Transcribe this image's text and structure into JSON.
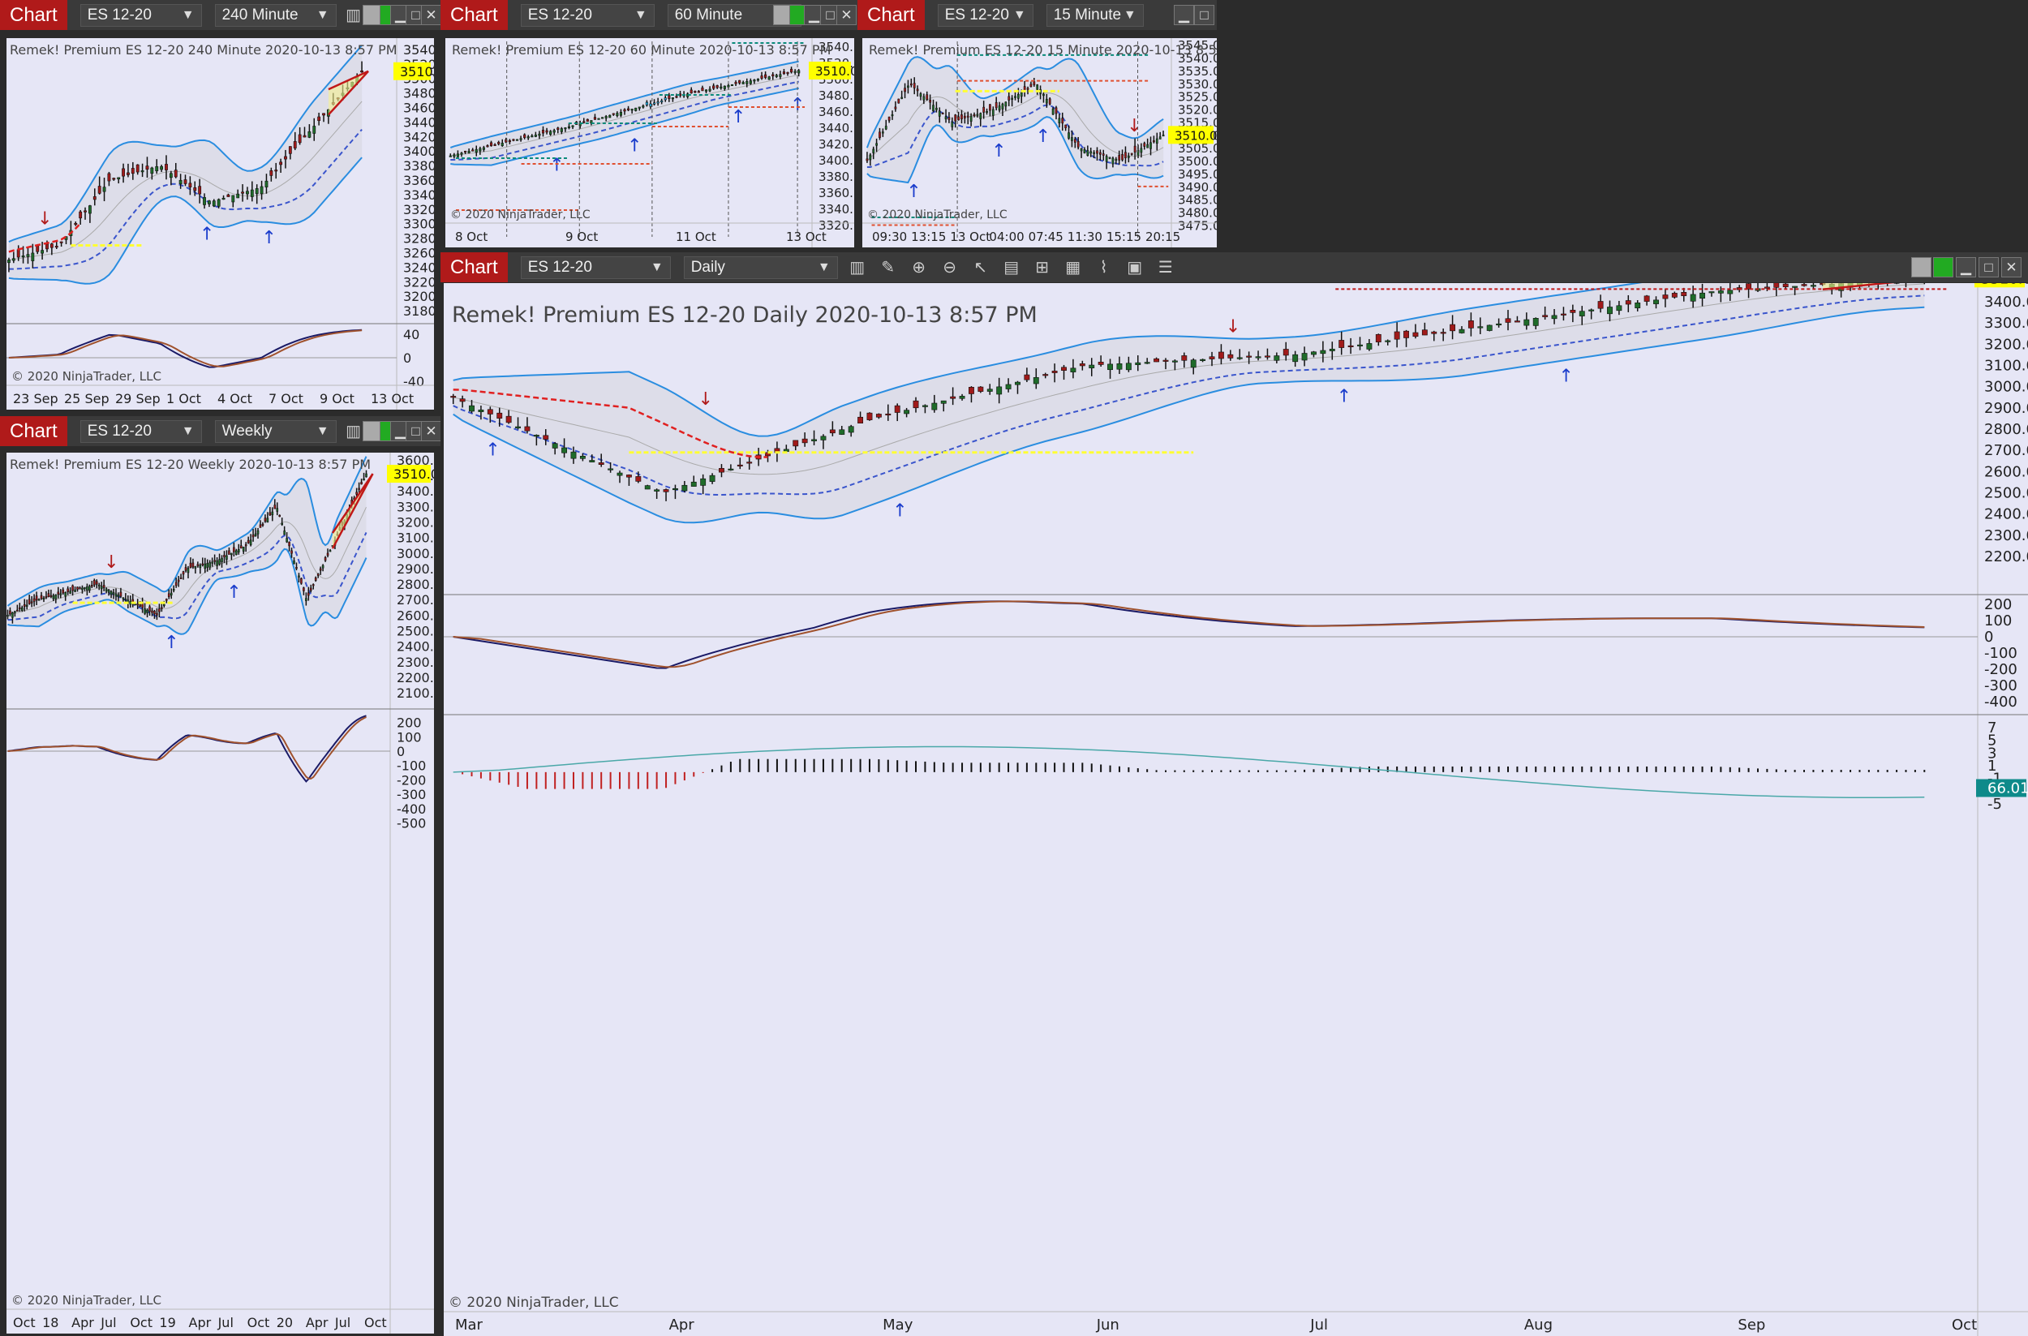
{
  "common": {
    "app_tag": "Chart",
    "instrument": "ES 12-20",
    "dropdown_chevron": "chevron-down-icon",
    "copyright": "© 2020 NinjaTrader, LLC",
    "price_badge": "3510.00"
  },
  "colors": {
    "background": "#2b2b2b",
    "toolbar": "#3a3a3a",
    "chart_tag": "#b01a1a",
    "panel": "#e6e6f6",
    "band_fill": "#d8d8e4",
    "bollinger": "#2a8de0",
    "lower_mid": "#3a55cc",
    "bearish": "#e02020",
    "support": "#ffff33",
    "macd": "#1a1a66",
    "signal": "#a0522d",
    "histogram_pos": "#111111",
    "histogram_neg": "#c02020",
    "cumulative": "#4aa8a8",
    "badge": "#ffff00",
    "oscillator_value_badge": "#0e8a8a"
  },
  "toolbar_icons": [
    "bar-style-icon",
    "pencil-icon",
    "zoom-icon",
    "chevron-down-icon"
  ],
  "windows": [
    {
      "interval": "240 Minute",
      "label": "Remek!  Premium  ES 12-20  240 Minute  2020-10-13 8:57 PM",
      "y_ticks": [
        "3540.00",
        "3520.00",
        "3500.00",
        "3480.00",
        "3460.00",
        "3440.00",
        "3420.00",
        "3400.00",
        "3380.00",
        "3360.00",
        "3340.00",
        "3320.00",
        "3300.00",
        "3280.00",
        "3260.00",
        "3240.00",
        "3220.00",
        "3200.00",
        "3180.00"
      ],
      "osc_ticks": [
        "40",
        "0",
        "-40"
      ],
      "x_ticks": [
        "23 Sep",
        "25 Sep",
        "29 Sep",
        "1 Oct",
        "4 Oct",
        "7 Oct",
        "9 Oct",
        "13 Oct"
      ]
    },
    {
      "interval": "60 Minute",
      "label": "Remek!  Premium  ES 12-20  60 Minute  2020-10-13 8:57 PM",
      "y_ticks": [
        "3540.00",
        "3520.00",
        "3500.00",
        "3480.00",
        "3460.00",
        "3440.00",
        "3420.00",
        "3400.00",
        "3380.00",
        "3360.00",
        "3340.00",
        "3320.00"
      ],
      "x_ticks": [
        "8 Oct",
        "9 Oct",
        "11 Oct",
        "13 Oct"
      ]
    },
    {
      "interval": "15 Minute",
      "label": "Remek!  Premium  ES 12-20  15 Minute  2020-10-13 8:57 PM",
      "y_ticks": [
        "3545.00",
        "3540.00",
        "3535.00",
        "3530.00",
        "3525.00",
        "3520.00",
        "3515.00",
        "3510.00",
        "3505.00",
        "3500.00",
        "3495.00",
        "3490.00",
        "3485.00",
        "3480.00",
        "3475.00"
      ],
      "x_ticks": [
        "09:30",
        "13:15",
        "13 Oct",
        "04:00",
        "07:45",
        "11:30",
        "15:15",
        "20:15"
      ]
    },
    {
      "interval": "Weekly",
      "label": "Remek!  Premium  ES 12-20  Weekly  2020-10-13 8:57 PM",
      "y_ticks": [
        "3600.00",
        "3500.00",
        "3400.00",
        "3300.00",
        "3200.00",
        "3100.00",
        "3000.00",
        "2900.00",
        "2800.00",
        "2700.00",
        "2600.00",
        "2500.00",
        "2400.00",
        "2300.00",
        "2200.00",
        "2100.00"
      ],
      "osc_ticks": [
        "200",
        "100",
        "0",
        "-100",
        "-200",
        "-300",
        "-400",
        "-500"
      ],
      "x_ticks": [
        "Oct",
        "18",
        "Apr",
        "Jul",
        "Oct",
        "19",
        "Apr",
        "Jul",
        "Oct",
        "20",
        "Apr",
        "Jul",
        "Oct"
      ]
    },
    {
      "interval": "Daily",
      "label": "Remek!  Premium  ES 12-20  Daily  2020-10-13 8:57 PM",
      "y_ticks": [
        "3400.00",
        "3300.00",
        "3200.00",
        "3100.00",
        "3000.00",
        "2900.00",
        "2800.00",
        "2700.00",
        "2600.00",
        "2500.00",
        "2400.00",
        "2300.00",
        "2200.00"
      ],
      "osc_ticks": [
        "200",
        "100",
        "0",
        "-100",
        "-200",
        "-300",
        "-400"
      ],
      "hist_ticks": [
        "7",
        "5",
        "3",
        "1",
        "-1",
        "-3",
        "-5"
      ],
      "hist_badge": "66.01",
      "x_ticks": [
        "Mar",
        "Apr",
        "May",
        "Jun",
        "Jul",
        "Aug",
        "Sep",
        "Oct"
      ]
    }
  ],
  "chart_data": [
    {
      "type": "candlestick",
      "interval": "240 Minute",
      "x": [
        "23 Sep",
        "25 Sep",
        "29 Sep",
        "1 Oct",
        "4 Oct",
        "7 Oct",
        "9 Oct",
        "13 Oct"
      ],
      "close": [
        3250,
        3270,
        3360,
        3380,
        3330,
        3350,
        3430,
        3510
      ],
      "ylim": [
        3170,
        3550
      ],
      "oscillator_ylim": [
        -50,
        50
      ]
    },
    {
      "type": "candlestick",
      "interval": "60 Minute",
      "x": [
        "8 Oct",
        "9 Oct",
        "11 Oct",
        "13 Oct"
      ],
      "close": [
        3405,
        3440,
        3480,
        3510
      ],
      "ylim": [
        3315,
        3545
      ]
    },
    {
      "type": "candlestick",
      "interval": "15 Minute",
      "x": [
        "09:30",
        "13:15",
        "13 Oct",
        "04:00",
        "07:45",
        "11:30",
        "15:15",
        "20:15"
      ],
      "close": [
        3500,
        3530,
        3515,
        3520,
        3530,
        3505,
        3500,
        3510
      ],
      "ylim": [
        3472,
        3546
      ]
    },
    {
      "type": "candlestick",
      "interval": "Weekly",
      "x": [
        "Oct",
        "18",
        "Apr",
        "Jul",
        "Oct",
        "19",
        "Apr",
        "Jul",
        "Oct",
        "20",
        "Apr",
        "Jul",
        "Oct"
      ],
      "close": [
        2600,
        2700,
        2750,
        2800,
        2700,
        2600,
        2900,
        2950,
        3050,
        3300,
        2700,
        3100,
        3510
      ],
      "ylim": [
        2080,
        3620
      ],
      "oscillator_ylim": [
        -520,
        260
      ]
    },
    {
      "type": "candlestick",
      "interval": "Daily",
      "x": [
        "Mar",
        "Apr",
        "May",
        "Jun",
        "Jul",
        "Aug",
        "Sep",
        "Oct"
      ],
      "close": [
        2950,
        2500,
        2850,
        3100,
        3150,
        3300,
        3450,
        3510
      ],
      "ylim": [
        2150,
        3450
      ],
      "oscillator_ylim": [
        -420,
        230
      ],
      "histogram_ylim": [
        -6,
        8
      ]
    }
  ]
}
